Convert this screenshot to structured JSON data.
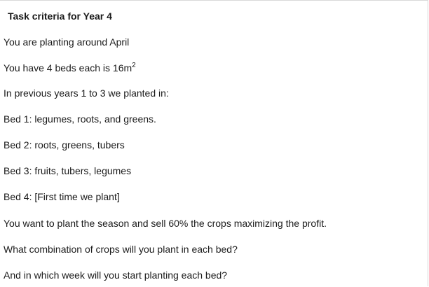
{
  "title": "Task criteria for Year 4",
  "lines": {
    "l1": "You are planting around April",
    "l2_prefix": "You have 4 beds each is 16m",
    "l2_sup": "2",
    "l3": "In previous years 1 to 3 we planted in:",
    "l4": "Bed 1: legumes, roots, and greens.",
    "l5": "Bed 2: roots, greens, tubers",
    "l6": "Bed 3: fruits, tubers, legumes",
    "l7": "Bed 4: [First time we plant]",
    "l8": "You want to plant the season and sell 60% the crops maximizing the profit.",
    "l9": "What combination of crops will you plant in each bed?",
    "l10": "And in which week will you start planting each bed?"
  }
}
